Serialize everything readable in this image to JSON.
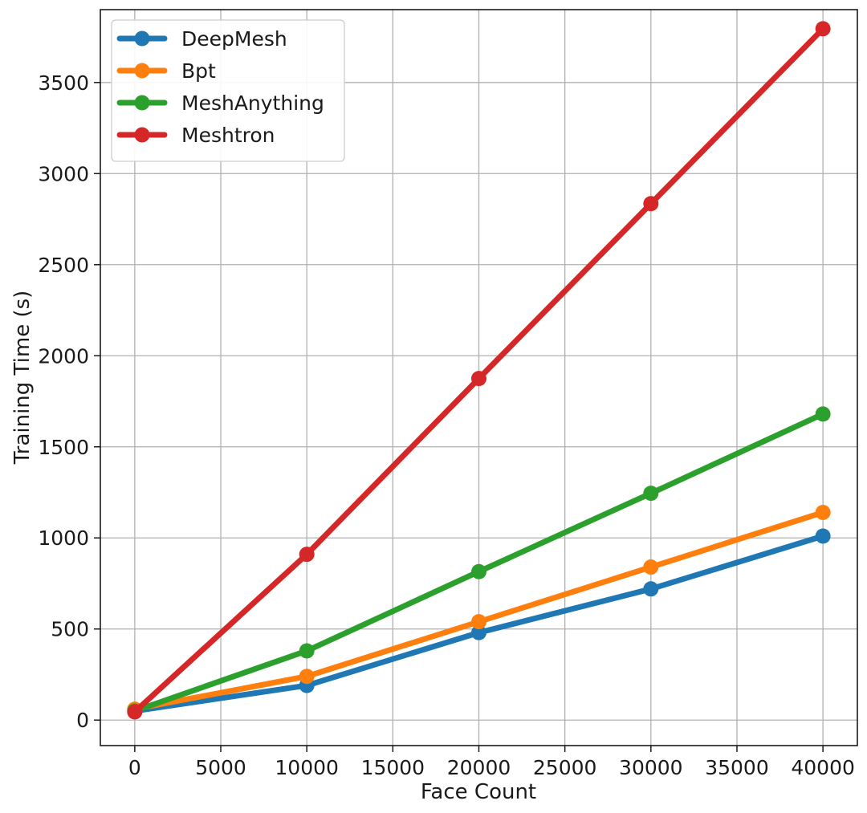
{
  "chart_data": {
    "type": "line",
    "title": "",
    "xlabel": "Face Count",
    "ylabel": "Training Time (s)",
    "x": [
      0,
      10000,
      20000,
      30000,
      40000
    ],
    "xlim": [
      -2000,
      42000
    ],
    "ylim": [
      -140,
      3900
    ],
    "xticks": [
      0,
      5000,
      10000,
      15000,
      20000,
      25000,
      30000,
      35000,
      40000
    ],
    "yticks": [
      0,
      500,
      1000,
      1500,
      2000,
      2500,
      3000,
      3500
    ],
    "grid": true,
    "legend_position": "top-left",
    "series": [
      {
        "name": "DeepMesh",
        "color": "#1f77b4",
        "values": [
          50,
          190,
          480,
          720,
          1010
        ]
      },
      {
        "name": "Bpt",
        "color": "#ff7f0e",
        "values": [
          60,
          240,
          540,
          840,
          1140
        ]
      },
      {
        "name": "MeshAnything",
        "color": "#2ca02c",
        "values": [
          50,
          380,
          815,
          1245,
          1680
        ]
      },
      {
        "name": "Meshtron",
        "color": "#d62728",
        "values": [
          45,
          910,
          1875,
          2835,
          3795
        ]
      }
    ]
  }
}
